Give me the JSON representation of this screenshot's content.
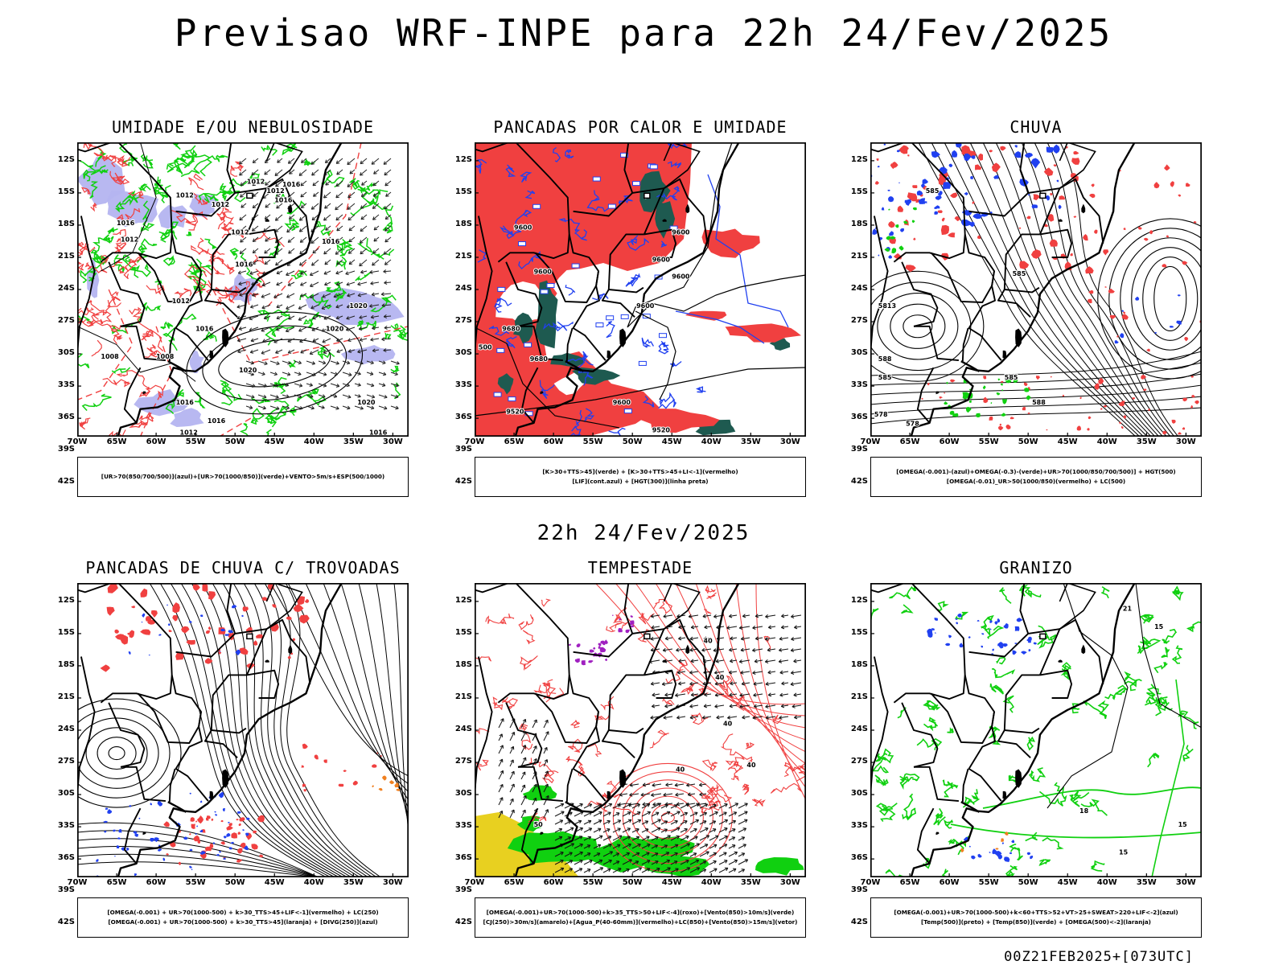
{
  "title": "Previsao WRF-INPE  para 22h 24/Fev/2025",
  "mid_title": "22h 24/Fev/2025",
  "footer": "00Z21FEB2025+[073UTC]",
  "colors": {
    "red": "#f04040",
    "green": "#10d010",
    "blue": "#2040f0",
    "lavender": "#b4b4f0",
    "darkteal": "#1e5a50",
    "yellow": "#e8d020",
    "orange": "#f08020",
    "purple": "#a020c0"
  },
  "chart_data": [
    {
      "type": "map",
      "panel": "umidade",
      "title": "UMIDADE E/OU NEBULOSIDADE",
      "xtick_labels": [
        "70W",
        "65W",
        "60W",
        "55W",
        "50W",
        "45W",
        "40W",
        "35W",
        "30W"
      ],
      "ytick_labels": [
        "12S",
        "15S",
        "18S",
        "21S",
        "24S",
        "27S",
        "30S",
        "33S",
        "36S",
        "39S",
        "42S"
      ],
      "legend": [
        "[UR>70(850/700/500)](azul)+[UR>70(1000/850)](verde)+VENTO>5m/s+ESP(500/1000)"
      ],
      "contour_labels": [
        {
          "text": "1012",
          "lon": -46.0,
          "lat": -15.5
        },
        {
          "text": "1012",
          "lon": -48.5,
          "lat": -14.5
        },
        {
          "text": "1016",
          "lon": -44.0,
          "lat": -14.8
        },
        {
          "text": "1016",
          "lon": -45.0,
          "lat": -16.5
        },
        {
          "text": "1012",
          "lon": -57.5,
          "lat": -16.0
        },
        {
          "text": "1012",
          "lon": -53.0,
          "lat": -17.0
        },
        {
          "text": "1016",
          "lon": -65.0,
          "lat": -19.0
        },
        {
          "text": "1012",
          "lon": -64.5,
          "lat": -20.8
        },
        {
          "text": "1012",
          "lon": -50.5,
          "lat": -20.0
        },
        {
          "text": "1016",
          "lon": -39.0,
          "lat": -21.0
        },
        {
          "text": "1016",
          "lon": -50.0,
          "lat": -23.5
        },
        {
          "text": "1012",
          "lon": -58.0,
          "lat": -27.5
        },
        {
          "text": "1016",
          "lon": -55.0,
          "lat": -30.5
        },
        {
          "text": "1020",
          "lon": -38.5,
          "lat": -30.5
        },
        {
          "text": "1020",
          "lon": -35.5,
          "lat": -28.0
        },
        {
          "text": "1008",
          "lon": -67.0,
          "lat": -33.5
        },
        {
          "text": "1008",
          "lon": -60.0,
          "lat": -33.5
        },
        {
          "text": "1020",
          "lon": -49.5,
          "lat": -35.0
        },
        {
          "text": "1016",
          "lon": -57.5,
          "lat": -38.5
        },
        {
          "text": "1016",
          "lon": -53.5,
          "lat": -40.5
        },
        {
          "text": "1020",
          "lon": -34.5,
          "lat": -38.5
        },
        {
          "text": "1012",
          "lon": -57.0,
          "lat": -41.8
        },
        {
          "text": "1016",
          "lon": -33.0,
          "lat": -41.8
        }
      ]
    },
    {
      "type": "map",
      "panel": "pancadas_calor",
      "title": "PANCADAS POR CALOR E UMIDADE",
      "xtick_labels": [
        "70W",
        "65W",
        "60W",
        "55W",
        "50W",
        "45W",
        "40W",
        "35W",
        "30W"
      ],
      "ytick_labels": [
        "12S",
        "15S",
        "18S",
        "21S",
        "24S",
        "27S",
        "30S",
        "33S",
        "36S",
        "39S",
        "42S"
      ],
      "legend": [
        "[K>30+TTS>45](verde) + [K>30+TTS>45+LI<-1](vermelho)",
        "[LIF](cont.azul) + [HGT(300)](linha preta)"
      ],
      "contour_labels": [
        {
          "text": "9600",
          "lon": -65.0,
          "lat": -19.5
        },
        {
          "text": "9600",
          "lon": -45.0,
          "lat": -20.0
        },
        {
          "text": "9600",
          "lon": -47.5,
          "lat": -23.0
        },
        {
          "text": "9600",
          "lon": -62.5,
          "lat": -24.3
        },
        {
          "text": "9600",
          "lon": -45.0,
          "lat": -24.8
        },
        {
          "text": "9600",
          "lon": -49.5,
          "lat": -28.0
        },
        {
          "text": "9680",
          "lon": -66.5,
          "lat": -30.5
        },
        {
          "text": "500",
          "lon": -69.5,
          "lat": -32.5
        },
        {
          "text": "9680",
          "lon": -63.0,
          "lat": -33.8
        },
        {
          "text": "9600",
          "lon": -52.5,
          "lat": -38.5
        },
        {
          "text": "9520",
          "lon": -66.0,
          "lat": -39.5
        },
        {
          "text": "9520",
          "lon": -47.5,
          "lat": -41.5
        }
      ]
    },
    {
      "type": "map",
      "panel": "chuva",
      "title": "CHUVA",
      "xtick_labels": [
        "70W",
        "65W",
        "60W",
        "55W",
        "50W",
        "45W",
        "40W",
        "35W",
        "30W"
      ],
      "ytick_labels": [
        "12S",
        "15S",
        "18S",
        "21S",
        "24S",
        "27S",
        "30S",
        "33S",
        "36S",
        "39S",
        "42S"
      ],
      "legend": [
        "[OMEGA(-0.001)-(azul)+OMEGA(-0.3)-(verde)+UR>70(1000/850/700/500)] + HGT(500)",
        "[OMEGA(-0.01)_UR>50(1000/850)(vermelho) + LC(500)"
      ],
      "contour_labels": [
        {
          "text": "585",
          "lon": -63.0,
          "lat": -15.5
        },
        {
          "text": "585",
          "lon": -52.0,
          "lat": -24.5
        },
        {
          "text": "5813",
          "lon": -69.0,
          "lat": -28.0
        },
        {
          "text": "588",
          "lon": -69.0,
          "lat": -33.8
        },
        {
          "text": "585",
          "lon": -69.0,
          "lat": -35.8
        },
        {
          "text": "585",
          "lon": -53.0,
          "lat": -35.8
        },
        {
          "text": "588",
          "lon": -49.5,
          "lat": -38.5
        },
        {
          "text": "578",
          "lon": -69.5,
          "lat": -39.8
        },
        {
          "text": "578",
          "lon": -65.5,
          "lat": -40.8
        }
      ]
    },
    {
      "type": "map",
      "panel": "trovoadas",
      "title": "PANCADAS DE CHUVA C/ TROVOADAS",
      "xtick_labels": [
        "70W",
        "65W",
        "60W",
        "55W",
        "50W",
        "45W",
        "40W",
        "35W",
        "30W"
      ],
      "ytick_labels": [
        "12S",
        "15S",
        "18S",
        "21S",
        "24S",
        "27S",
        "30S",
        "33S",
        "36S",
        "39S",
        "42S"
      ],
      "legend": [
        "[OMEGA(-0.001) + UR>70(1000-500) + k>30_TTS>45+LIF<-1](vermelho) + LC(250)",
        "[OMEGA(-0.001) + UR>70(1000-500) + k>30_TTS>45](laranja) + [DIVG(250)](azul)"
      ],
      "contour_labels": []
    },
    {
      "type": "map",
      "panel": "tempestade",
      "title": "TEMPESTADE",
      "xtick_labels": [
        "70W",
        "65W",
        "60W",
        "55W",
        "50W",
        "45W",
        "40W",
        "35W",
        "30W"
      ],
      "ytick_labels": [
        "12S",
        "15S",
        "18S",
        "21S",
        "24S",
        "27S",
        "30S",
        "33S",
        "36S",
        "39S",
        "42S"
      ],
      "legend": [
        "[OMEGA(-0.001)+UR>70(1000-500)+k>35_TTS>50+LIF<-4](roxo)+[Vento(850)>10m/s](verde)",
        "[CJ(250)>30m/s](amarelo)+[Agua_P(40-60mm)](vermelho)+LC(850)+[Vento(850)>15m/s](vetor)"
      ],
      "contour_labels": [
        {
          "text": "40",
          "lon": -41.0,
          "lat": -16.5
        },
        {
          "text": "40",
          "lon": -39.5,
          "lat": -20.5
        },
        {
          "text": "40",
          "lon": -38.5,
          "lat": -25.5
        },
        {
          "text": "40",
          "lon": -44.5,
          "lat": -30.5
        },
        {
          "text": "40",
          "lon": -35.5,
          "lat": -30.0
        },
        {
          "text": "50",
          "lon": -62.5,
          "lat": -36.5
        }
      ]
    },
    {
      "type": "map",
      "panel": "granizo",
      "title": "GRANIZO",
      "xtick_labels": [
        "70W",
        "65W",
        "60W",
        "55W",
        "50W",
        "45W",
        "40W",
        "35W",
        "30W"
      ],
      "ytick_labels": [
        "12S",
        "15S",
        "18S",
        "21S",
        "24S",
        "27S",
        "30S",
        "33S",
        "36S",
        "39S",
        "42S"
      ],
      "legend": [
        "[OMEGA(-0.001)+UR>70(1000-500)+k<60+TTS>52+VT>25+SWEAT>220+LIF<-2](azul)",
        "[Temp(500)](preto) + [Temp(850)](verde) + [OMEGA(500)<-2](laranja)"
      ],
      "contour_labels": [
        {
          "text": "21",
          "lon": -38.0,
          "lat": -13.0
        },
        {
          "text": "15",
          "lon": -34.0,
          "lat": -15.0
        },
        {
          "text": "18",
          "lon": -43.5,
          "lat": -35.0
        },
        {
          "text": "15",
          "lon": -31.0,
          "lat": -36.5
        },
        {
          "text": "15",
          "lon": -38.5,
          "lat": -39.5
        }
      ]
    }
  ]
}
